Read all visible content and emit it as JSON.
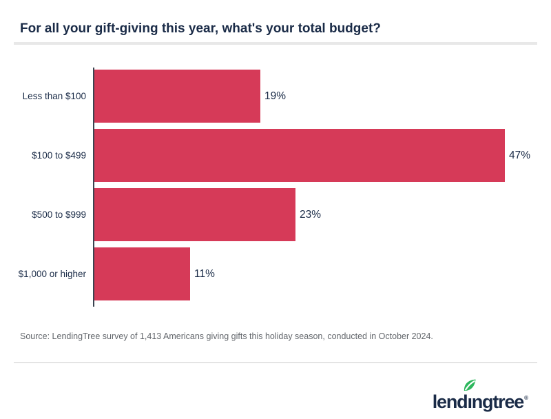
{
  "title": "For all your gift-giving this year, what's your total budget?",
  "chart_data": {
    "type": "bar",
    "orientation": "horizontal",
    "title": "For all your gift-giving this year, what's your total budget?",
    "categories": [
      "Less than $100",
      "$100 to $499",
      "$500 to $999",
      "$1,000 or higher"
    ],
    "values": [
      19,
      47,
      23,
      11
    ],
    "value_suffix": "%",
    "xlim": [
      0,
      50
    ],
    "grid": false,
    "legend": false,
    "bar_color": "#d63a58",
    "label_color": "#1a2b47"
  },
  "source": "Source: LendingTree survey of 1,413 Americans giving gifts this holiday season, conducted in October 2024.",
  "logo": {
    "text": "lendingtree",
    "text_before_i": "lend",
    "i_char": "ı",
    "text_after_i": "ngtree",
    "registered_mark": "®",
    "leaf_color": "#2db75d",
    "text_color": "#1a2b47"
  },
  "colors": {
    "accent_red": "#d63a58",
    "navy": "#1a2b47",
    "axis": "#3a4350",
    "source_gray": "#63676c",
    "divider_gray": "#e8e8e8"
  }
}
